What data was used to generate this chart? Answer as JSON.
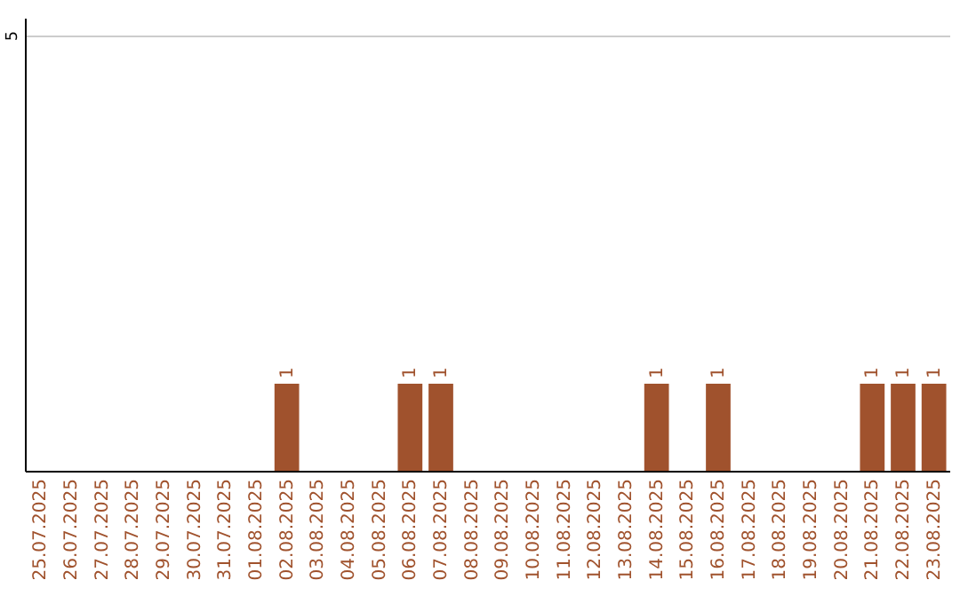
{
  "chart_data": {
    "type": "bar",
    "categories": [
      "25.07.2025",
      "26.07.2025",
      "27.07.2025",
      "28.07.2025",
      "29.07.2025",
      "30.07.2025",
      "31.07.2025",
      "01.08.2025",
      "02.08.2025",
      "03.08.2025",
      "04.08.2025",
      "05.08.2025",
      "06.08.2025",
      "07.08.2025",
      "08.08.2025",
      "09.08.2025",
      "10.08.2025",
      "11.08.2025",
      "12.08.2025",
      "13.08.2025",
      "14.08.2025",
      "15.08.2025",
      "16.08.2025",
      "17.08.2025",
      "18.08.2025",
      "19.08.2025",
      "20.08.2025",
      "21.08.2025",
      "22.08.2025",
      "23.08.2025"
    ],
    "values": [
      null,
      null,
      null,
      null,
      null,
      null,
      null,
      null,
      1,
      null,
      null,
      null,
      1,
      1,
      null,
      null,
      null,
      null,
      null,
      null,
      1,
      null,
      1,
      null,
      null,
      null,
      null,
      1,
      1,
      1
    ],
    "color": "#a0522d",
    "ylim": [
      0,
      5.2
    ],
    "yticks": [
      5
    ],
    "grid": "y",
    "data_labels": true
  }
}
